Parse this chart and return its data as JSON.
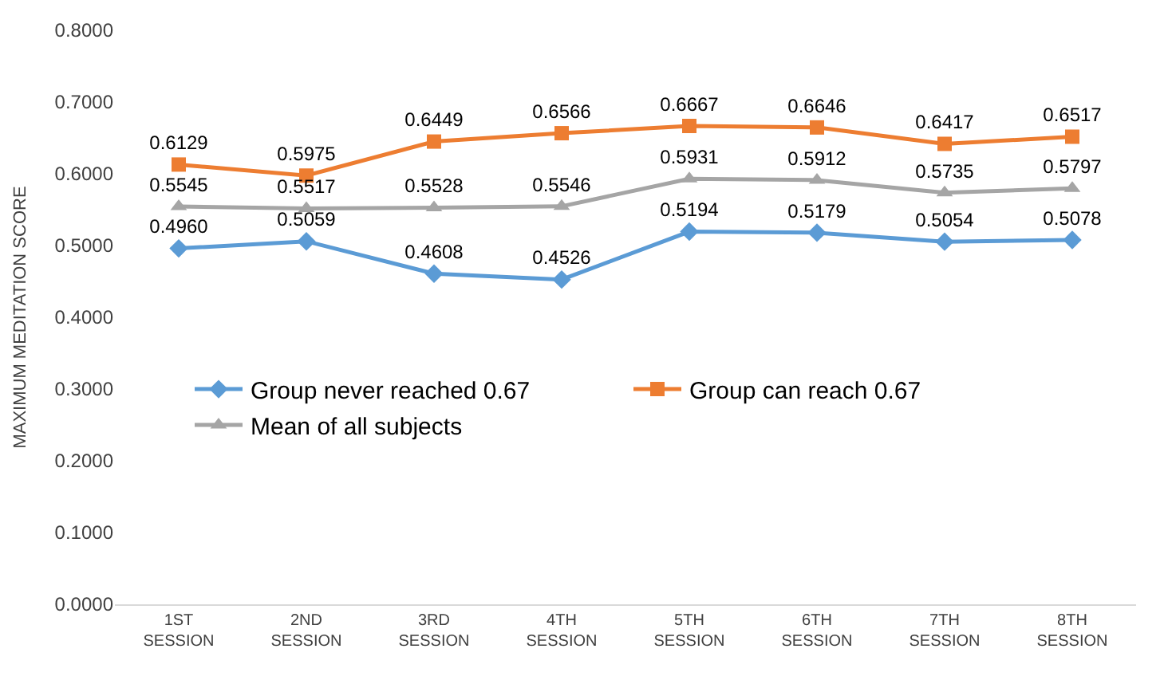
{
  "chart_data": {
    "type": "line",
    "ylabel": "MAXIMUM MEDITATION SCORE",
    "categories": [
      "1ST SESSION",
      "2ND SESSION",
      "3RD SESSION",
      "4TH SESSION",
      "5TH SESSION",
      "6TH SESSION",
      "7TH SESSION",
      "8TH SESSION"
    ],
    "series": [
      {
        "name": "Group never reached 0.67",
        "color": "#5b9bd5",
        "marker": "diamond",
        "values": [
          0.496,
          0.5059,
          0.4608,
          0.4526,
          0.5194,
          0.5179,
          0.5054,
          0.5078
        ],
        "value_labels": [
          "0.4960",
          "0.5059",
          "0.4608",
          "0.4526",
          "0.5194",
          "0.5179",
          "0.5054",
          "0.5078"
        ]
      },
      {
        "name": "Group can reach 0.67",
        "color": "#ed7d31",
        "marker": "square",
        "values": [
          0.6129,
          0.5975,
          0.6449,
          0.6566,
          0.6667,
          0.6646,
          0.6417,
          0.6517
        ],
        "value_labels": [
          "0.6129",
          "0.5975",
          "0.6449",
          "0.6566",
          "0.6667",
          "0.6646",
          "0.6417",
          "0.6517"
        ]
      },
      {
        "name": "Mean of all subjects",
        "color": "#a5a5a5",
        "marker": "triangle",
        "values": [
          0.5545,
          0.5517,
          0.5528,
          0.5546,
          0.5931,
          0.5912,
          0.5735,
          0.5797
        ],
        "value_labels": [
          "0.5545",
          "0.5517",
          "0.5528",
          "0.5546",
          "0.5931",
          "0.5912",
          "0.5735",
          "0.5797"
        ]
      }
    ],
    "ylim": [
      0,
      0.8
    ],
    "yticks": [
      {
        "value": 0,
        "label": "0.0000"
      },
      {
        "value": 0.1,
        "label": "0.1000"
      },
      {
        "value": 0.2,
        "label": "0.2000"
      },
      {
        "value": 0.3,
        "label": "0.3000"
      },
      {
        "value": 0.4,
        "label": "0.4000"
      },
      {
        "value": 0.5,
        "label": "0.5000"
      },
      {
        "value": 0.6,
        "label": "0.6000"
      },
      {
        "value": 0.7,
        "label": "0.7000"
      },
      {
        "value": 0.8,
        "label": "0.8000"
      }
    ],
    "legend": "bottom",
    "line_style": "solid"
  }
}
